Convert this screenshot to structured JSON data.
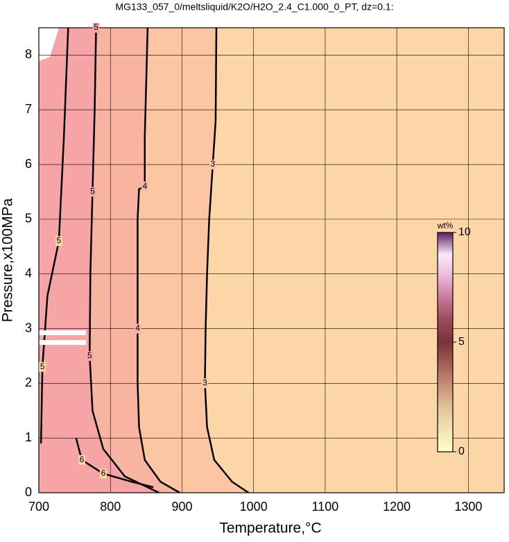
{
  "chart_data": {
    "type": "contour",
    "title": "MG133_057_0/meltsliquid/K2O/H2O_2.4_C1.000_0_PT, dz=0.1:",
    "xlabel": "Temperature,°C",
    "ylabel": "Pressure,x100MPa",
    "xlim": [
      700,
      1350
    ],
    "ylim": [
      0,
      8.5
    ],
    "xticks": [
      700,
      800,
      900,
      1000,
      1100,
      1200,
      1300
    ],
    "yticks": [
      0,
      1,
      2,
      3,
      4,
      5,
      6,
      7,
      8
    ],
    "grid": true,
    "background": "#fdd6a8",
    "contours": [
      {
        "level": 3,
        "fill": "#fbc6a1",
        "x": [
          993,
          970,
          945,
          935,
          932,
          933,
          935,
          938,
          943,
          947,
          948
        ],
        "y": [
          0,
          0.2,
          0.6,
          1.2,
          2,
          3,
          4,
          5,
          6,
          6.8,
          8.5
        ],
        "labels_at": [
          4,
          8
        ]
      },
      {
        "level": 4,
        "fill": "#f9b4a1",
        "x": [
          897,
          870,
          848,
          840,
          838,
          838,
          838,
          838,
          840,
          848,
          848,
          850,
          852
        ],
        "y": [
          0,
          0.2,
          0.6,
          1.2,
          2,
          3,
          4,
          5,
          5.55,
          5.6,
          6.5,
          7.5,
          8.5
        ],
        "labels_at": [
          5,
          9
        ]
      },
      {
        "level": 5,
        "fill": "#f7a4a7",
        "x": [
          868,
          820,
          790,
          775,
          771,
          772,
          775,
          778,
          780
        ],
        "y": [
          0,
          0.3,
          0.8,
          1.5,
          2.5,
          4,
          5.5,
          7,
          8.5
        ],
        "labels_at": [
          4,
          6,
          8
        ]
      },
      {
        "level": 5,
        "x": [
          703,
          705,
          712,
          728,
          735,
          741
        ],
        "y": [
          0.9,
          2.3,
          3.6,
          4.6,
          6.5,
          8.5
        ],
        "labels_at": [
          1,
          3
        ]
      },
      {
        "level": 6,
        "x": [
          752,
          760,
          790,
          830,
          860
        ],
        "y": [
          1.0,
          0.6,
          0.35,
          0.2,
          0.1
        ],
        "labels_at": [
          1,
          2
        ]
      }
    ],
    "colorbar": {
      "label": "wt%",
      "lim": [
        0,
        10
      ],
      "ticks": [
        0,
        5,
        10
      ],
      "colors": [
        "#ffffc4",
        "#f2e4b0",
        "#e2c49a",
        "#c89078",
        "#a45e58",
        "#7c3038",
        "#9a4a5c",
        "#c87898",
        "#ecb8dc",
        "#fae8fa",
        "#5e1e5e"
      ]
    }
  }
}
